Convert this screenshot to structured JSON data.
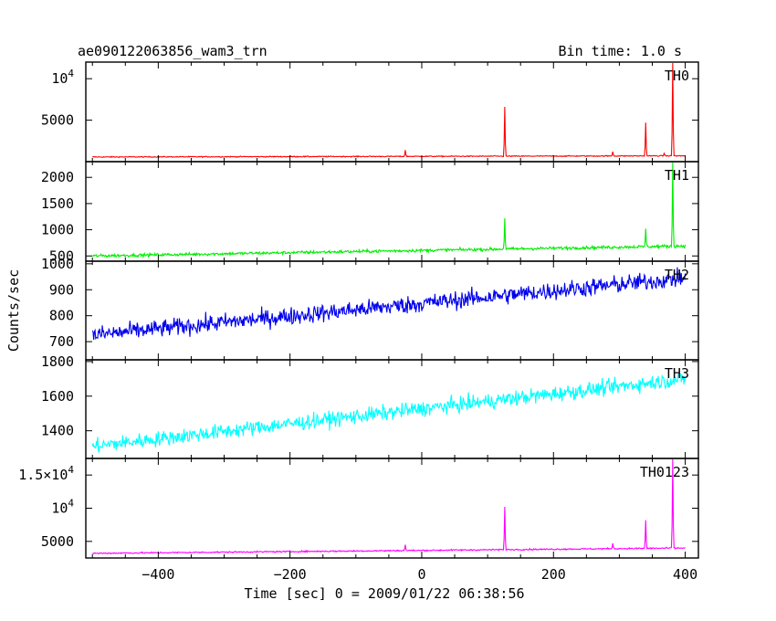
{
  "header": {
    "title": "ae090122063856_wam3_trn",
    "bin_time": "Bin time: 1.0 s"
  },
  "chart_data": {
    "type": "line",
    "xlabel": "Time [sec] 0 = 2009/01/22 06:38:56",
    "ylabel": "Counts/sec",
    "xlim": [
      -510,
      420
    ],
    "x_ticks": [
      -400,
      -200,
      0,
      200,
      400
    ],
    "x_tick_labels": [
      "−400",
      "−200",
      "0",
      "200",
      "400"
    ],
    "x_range": [
      -500,
      400
    ],
    "panels": [
      {
        "name": "TH0",
        "color": "#ff0000",
        "ylim": [
          0,
          12000
        ],
        "y_ticks": [
          5000,
          10000
        ],
        "y_tick_labels": [
          {
            "text": "5000"
          },
          {
            "text": "10",
            "sup": "4"
          }
        ],
        "baseline": [
          [
            -500,
            560
          ],
          [
            400,
            700
          ]
        ],
        "noise": 60,
        "spikes": [
          [
            -25,
            1400
          ],
          [
            126,
            6600
          ],
          [
            290,
            1200
          ],
          [
            340,
            4700
          ],
          [
            368,
            1000
          ],
          [
            381,
            12000
          ]
        ]
      },
      {
        "name": "TH1",
        "color": "#00ee00",
        "ylim": [
          400,
          2300
        ],
        "y_ticks": [
          500,
          1000,
          1500,
          2000
        ],
        "y_tick_labels": [
          {
            "text": "500"
          },
          {
            "text": "1000"
          },
          {
            "text": "1500"
          },
          {
            "text": "2000"
          }
        ],
        "baseline": [
          [
            -500,
            500
          ],
          [
            400,
            690
          ]
        ],
        "noise": 30,
        "spikes": [
          [
            126,
            1220
          ],
          [
            340,
            1020
          ],
          [
            381,
            2300
          ]
        ]
      },
      {
        "name": "TH2",
        "color": "#0000ee",
        "ylim": [
          630,
          1010
        ],
        "y_ticks": [
          700,
          800,
          900,
          1000
        ],
        "y_tick_labels": [
          {
            "text": "700"
          },
          {
            "text": "800"
          },
          {
            "text": "900"
          },
          {
            "text": "1000"
          }
        ],
        "baseline": [
          [
            -500,
            725
          ],
          [
            400,
            945
          ]
        ],
        "noise": 35,
        "spikes": []
      },
      {
        "name": "TH3",
        "color": "#00ffff",
        "ylim": [
          1240,
          1810
        ],
        "y_ticks": [
          1400,
          1600,
          1800
        ],
        "y_tick_labels": [
          {
            "text": "1400"
          },
          {
            "text": "1600"
          },
          {
            "text": "1800"
          }
        ],
        "baseline": [
          [
            -500,
            1310
          ],
          [
            400,
            1700
          ]
        ],
        "noise": 45,
        "spikes": []
      },
      {
        "name": "TH0123",
        "color": "#ff00ff",
        "ylim": [
          2500,
          17500
        ],
        "y_ticks": [
          5000,
          10000,
          15000
        ],
        "y_tick_labels": [
          {
            "text": "5000"
          },
          {
            "text": "10",
            "sup": "4"
          },
          {
            "text": "1.5×10",
            "sup": "4"
          }
        ],
        "baseline": [
          [
            -500,
            3200
          ],
          [
            400,
            4000
          ]
        ],
        "noise": 110,
        "spikes": [
          [
            -25,
            4500
          ],
          [
            126,
            10200
          ],
          [
            290,
            4700
          ],
          [
            340,
            8200
          ],
          [
            381,
            17500
          ]
        ]
      }
    ]
  }
}
